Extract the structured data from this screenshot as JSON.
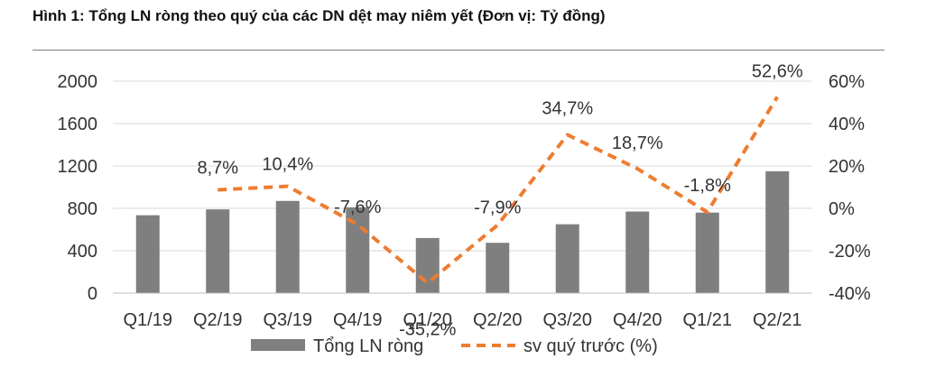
{
  "title": "Hình 1: Tổng LN ròng theo quý của các DN dệt may niêm yết (Đơn vị: Tỷ đồng)",
  "colors": {
    "bar": "#7f7f7f",
    "line": "#ed7d31",
    "text": "#333333",
    "grid": "#d9d9d9"
  },
  "chart_data": {
    "type": "bar",
    "title": "Hình 1: Tổng LN ròng theo quý của các DN dệt may niêm yết (Đơn vị: Tỷ đồng)",
    "categories": [
      "Q1/19",
      "Q2/19",
      "Q3/19",
      "Q4/19",
      "Q1/20",
      "Q2/20",
      "Q3/20",
      "Q4/20",
      "Q1/21",
      "Q2/21"
    ],
    "ylim": [
      0,
      2000
    ],
    "yticks": [
      "0",
      "400",
      "800",
      "1200",
      "1600",
      "2000"
    ],
    "y2lim": [
      -40,
      60
    ],
    "y2ticks": [
      "-40%",
      "-20%",
      "0%",
      "20%",
      "40%",
      "60%"
    ],
    "grid": true,
    "legend_position": "bottom",
    "series": [
      {
        "name": "Tổng LN ròng",
        "type": "bar",
        "axis": "left",
        "values": [
          735,
          790,
          870,
          810,
          520,
          475,
          650,
          770,
          760,
          1150
        ]
      },
      {
        "name": "sv quý trước (%)",
        "type": "line",
        "style": "dashed",
        "axis": "right",
        "values": [
          null,
          8.7,
          10.4,
          -7.6,
          -35.2,
          -7.9,
          34.7,
          18.7,
          -1.8,
          52.6
        ],
        "labels": [
          "",
          "8,7%",
          "10,4%",
          "-7,6%",
          "-35,2%",
          "-7,9%",
          "34,7%",
          "18,7%",
          "-1,8%",
          "52,6%"
        ]
      }
    ]
  }
}
